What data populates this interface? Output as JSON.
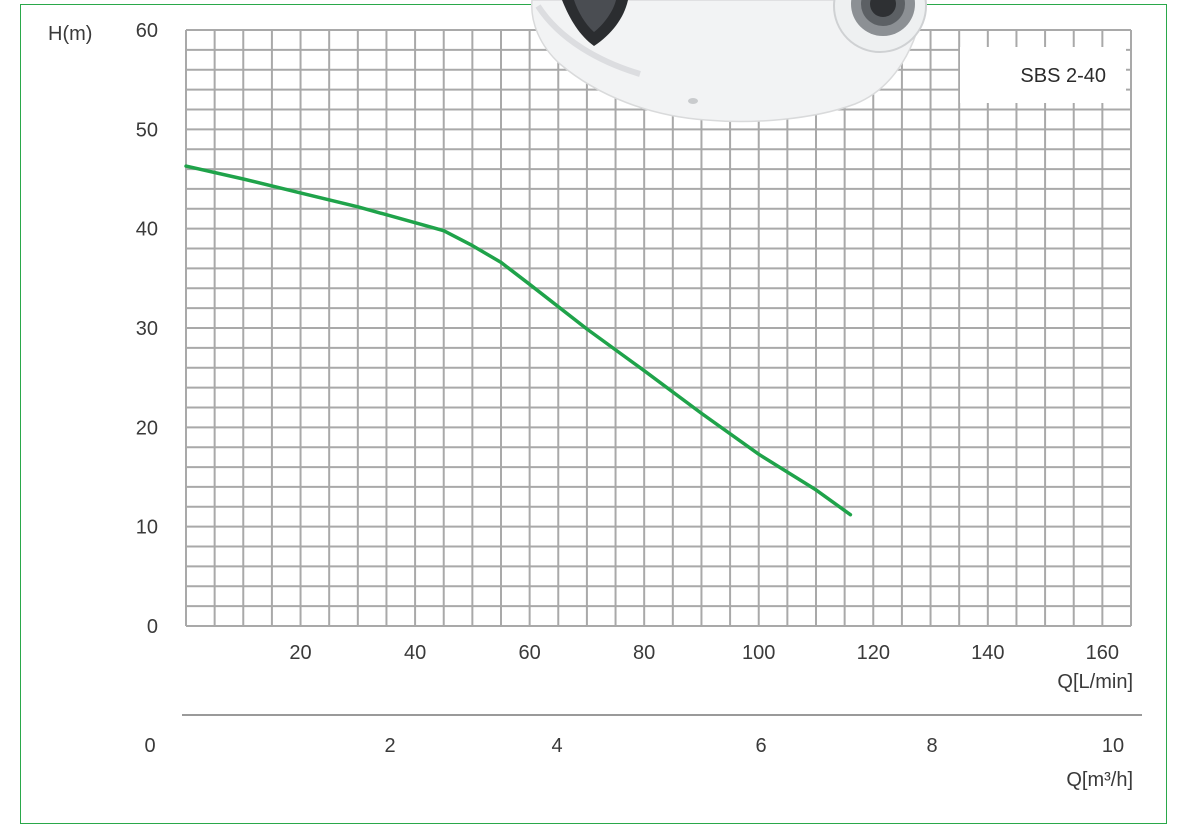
{
  "colors": {
    "frame": "#2aa84a",
    "grid": "#a9a9a9",
    "curve": "#1fa34a",
    "text": "#3a3a3a",
    "divider": "#9a9a9a"
  },
  "chart_data": {
    "type": "line",
    "title": "SBS 2-40",
    "ylabel": "H(m)",
    "xlabel": "Q[L/min]",
    "x2label": "Q[m³/h]",
    "xlim": [
      0,
      165
    ],
    "ylim": [
      0,
      60
    ],
    "x_ticks": [
      "20",
      "40",
      "60",
      "80",
      "100",
      "120",
      "140",
      "160"
    ],
    "y_ticks": [
      "0",
      "10",
      "20",
      "30",
      "40",
      "50",
      "60"
    ],
    "x2_ticks": [
      "0",
      "2",
      "4",
      "6",
      "8",
      "10"
    ],
    "grid": true,
    "legend": "none",
    "series": [
      {
        "x": [
          0,
          10,
          20,
          30,
          40,
          45,
          50,
          55,
          60,
          70,
          80,
          90,
          100,
          110,
          116
        ],
        "y": [
          46.3,
          45.0,
          43.6,
          42.2,
          40.6,
          39.8,
          38.3,
          36.6,
          34.4,
          29.9,
          25.7,
          21.4,
          17.3,
          13.7,
          11.2
        ]
      }
    ]
  }
}
